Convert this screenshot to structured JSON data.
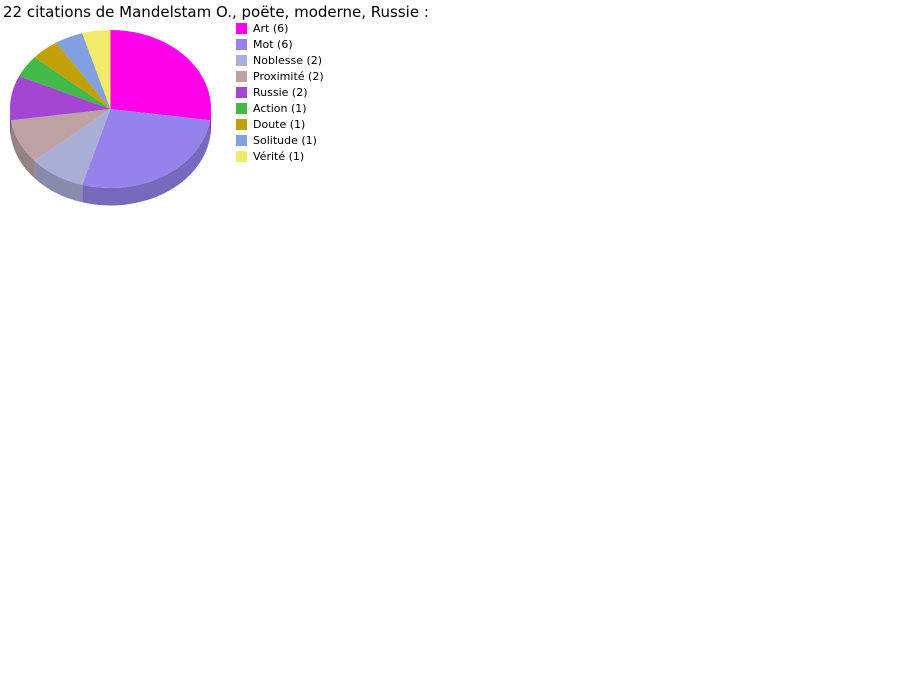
{
  "title": "22 citations de Mandelstam O., poëte, moderne, Russie :",
  "chart_data": {
    "type": "pie",
    "style": "3d",
    "title": "22 citations de Mandelstam O., poëte, moderne, Russie :",
    "total": 22,
    "start_angle_deg": -90,
    "direction": "clockwise",
    "legend_position": "right",
    "background_color": "#ffffff",
    "slices": [
      {
        "label": "Art",
        "value": 6,
        "color": "#FF00EB"
      },
      {
        "label": "Mot",
        "value": 6,
        "color": "#9583EB"
      },
      {
        "label": "Noblesse",
        "value": 2,
        "color": "#A9AED7"
      },
      {
        "label": "Proximité",
        "value": 2,
        "color": "#BCA2A3"
      },
      {
        "label": "Russie",
        "value": 2,
        "color": "#A347D2"
      },
      {
        "label": "Action",
        "value": 1,
        "color": "#41BA47"
      },
      {
        "label": "Doute",
        "value": 1,
        "color": "#C3A005"
      },
      {
        "label": "Solitude",
        "value": 1,
        "color": "#81A0DF"
      },
      {
        "label": "Vérité",
        "value": 1,
        "color": "#F2EA6A"
      }
    ]
  }
}
